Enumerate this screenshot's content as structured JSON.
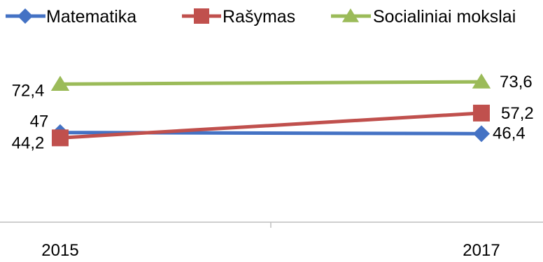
{
  "chart_data": {
    "type": "line",
    "categories": [
      "2015",
      "2017"
    ],
    "series": [
      {
        "name": "Matematika",
        "values": [
          47,
          46.4
        ],
        "labels": [
          "47",
          "46,4"
        ],
        "color": "#4472C4",
        "marker": "diamond"
      },
      {
        "name": "Rašymas",
        "values": [
          44.2,
          57.2
        ],
        "labels": [
          "44,2",
          "57,2"
        ],
        "color": "#C0504D",
        "marker": "square"
      },
      {
        "name": "Socialiniai mokslai",
        "values": [
          72.4,
          73.6
        ],
        "labels": [
          "72,4",
          "73,6"
        ],
        "color": "#9BBB59",
        "marker": "triangle"
      }
    ],
    "title": "",
    "xlabel": "",
    "ylabel": "",
    "ylim": [
      0,
      100
    ],
    "grid": false,
    "legend_position": "top"
  }
}
